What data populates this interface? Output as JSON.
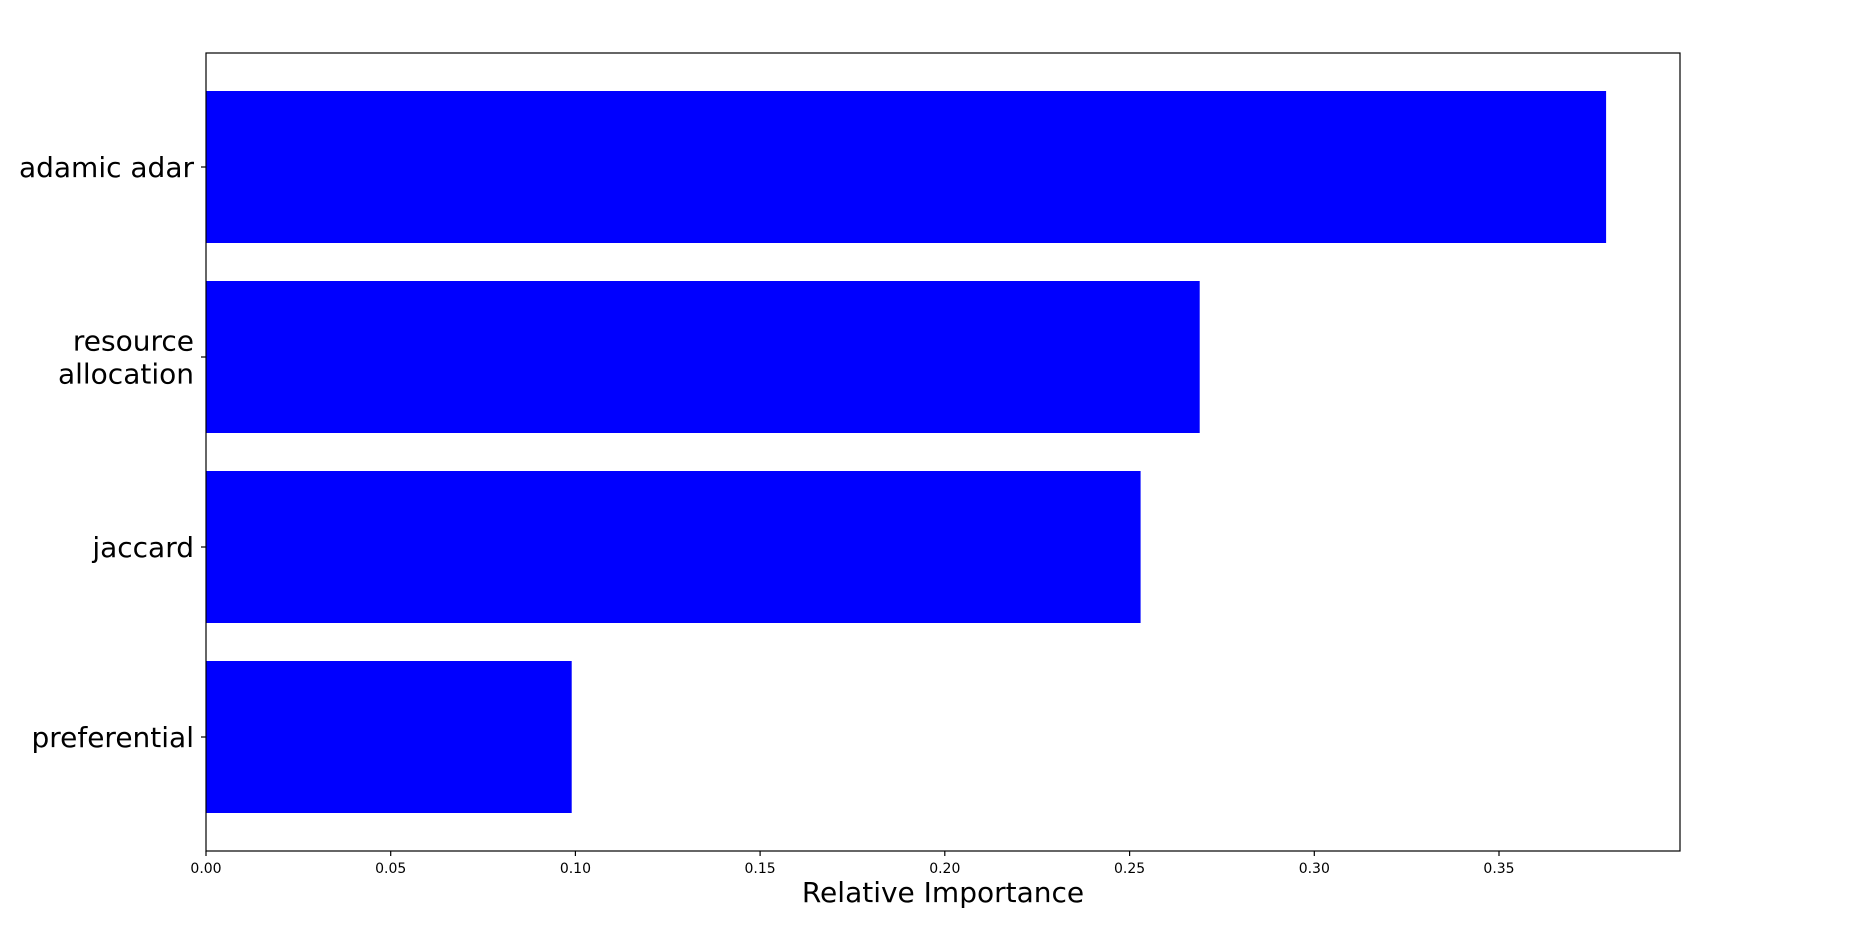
{
  "chart_data": {
    "type": "bar",
    "orientation": "horizontal",
    "title": "",
    "xlabel": "Relative Importance",
    "ylabel": "",
    "categories": [
      [
        "adamic adar"
      ],
      [
        "resource",
        "allocation"
      ],
      [
        "jaccard"
      ],
      [
        "preferential"
      ]
    ],
    "values": [
      0.379,
      0.269,
      0.253,
      0.099
    ],
    "xlim": [
      0,
      0.399
    ],
    "xticks": [
      0.0,
      0.05,
      0.1,
      0.15,
      0.2,
      0.25,
      0.3,
      0.35
    ],
    "xtick_labels": [
      "0.00",
      "0.05",
      "0.10",
      "0.15",
      "0.20",
      "0.25",
      "0.30",
      "0.35"
    ],
    "bar_color": "#0000ff",
    "grid": false,
    "legend": "none"
  }
}
